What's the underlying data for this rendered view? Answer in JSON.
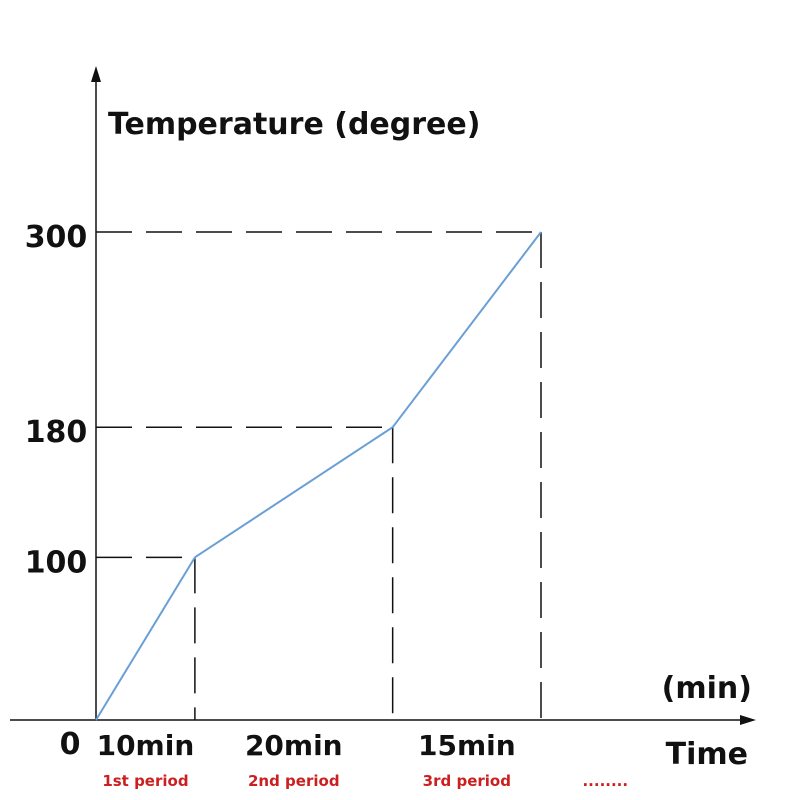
{
  "chart_data": {
    "type": "line",
    "ylabel": "Temperature (degree)",
    "xlabel": "Time",
    "xunit": "(min)",
    "origin_label": "0",
    "x": [
      0,
      10,
      30,
      45
    ],
    "y": [
      0,
      100,
      180,
      300
    ],
    "yticks": [
      {
        "value": 100,
        "label": "100"
      },
      {
        "value": 180,
        "label": "180"
      },
      {
        "value": 300,
        "label": "300"
      }
    ],
    "segments": [
      {
        "duration": "10min",
        "period": "1st period"
      },
      {
        "duration": "20min",
        "period": "2nd period"
      },
      {
        "duration": "15min",
        "period": "3rd period"
      },
      {
        "duration": "",
        "period": "........"
      }
    ],
    "line_color": "#6a9fd6",
    "period_color": "#cc1f1f"
  }
}
